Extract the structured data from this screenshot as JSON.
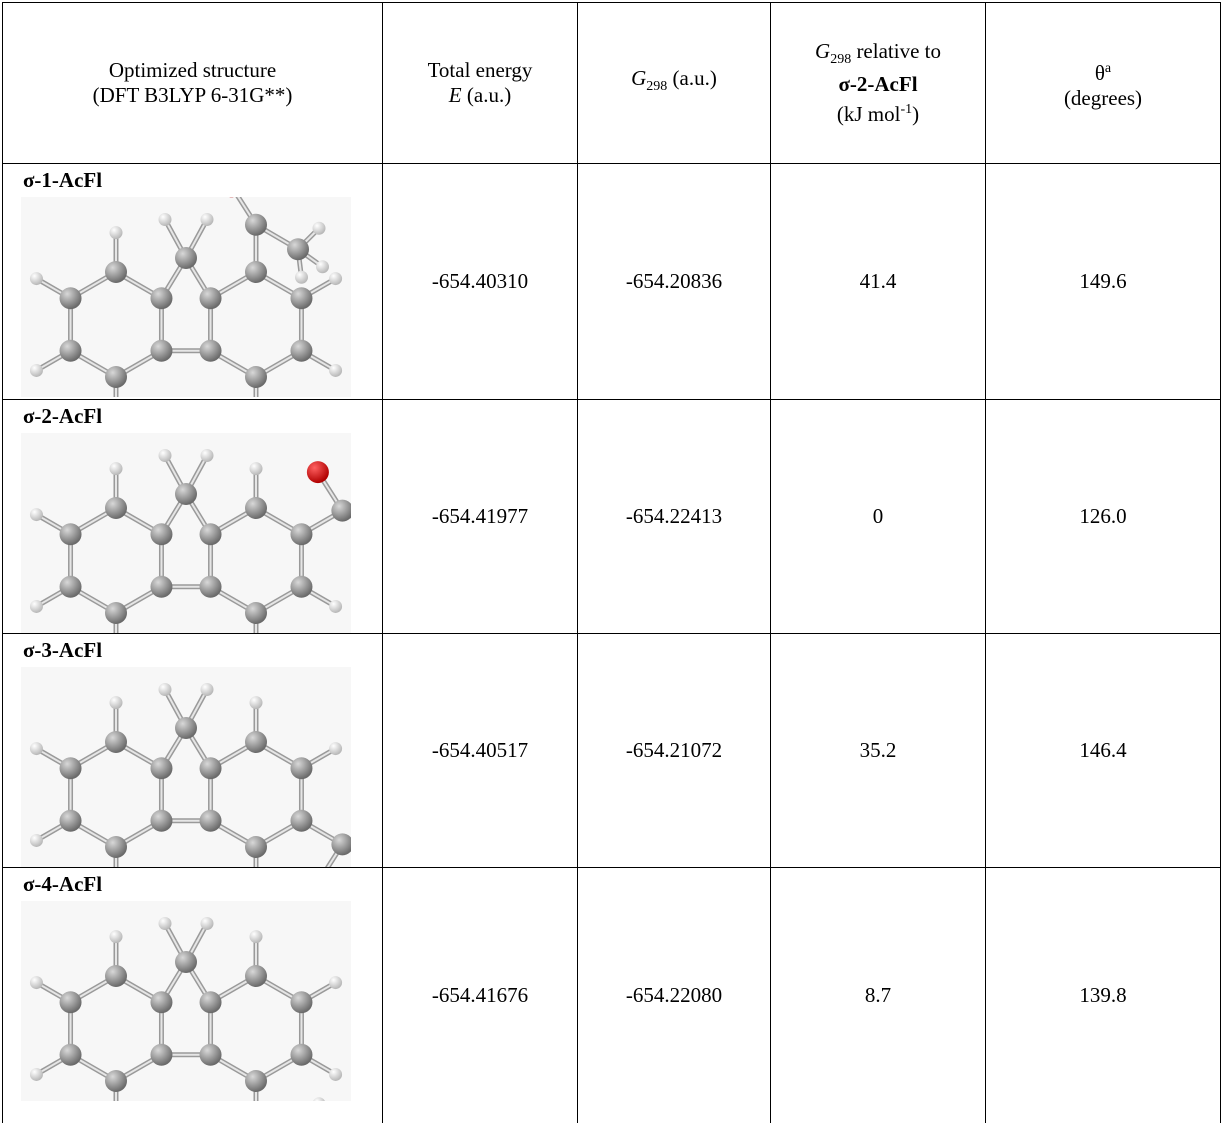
{
  "table": {
    "header": {
      "structure": {
        "line1": "Optimized structure",
        "line2": "(DFT B3LYP 6-31G**)"
      },
      "energy": {
        "line1": "Total energy",
        "symbol": "E",
        "unit": "(a.u.)"
      },
      "g298": {
        "symbol": "G",
        "subscript": "298",
        "unit": "(a.u.)"
      },
      "relative": {
        "symbol": "G",
        "subscript": "298",
        "text": "relative to",
        "reference": "σ-2-AcFl",
        "unit_open": "(kJ mol",
        "exponent": "-1",
        "unit_close": ")"
      },
      "theta": {
        "symbol": "θ",
        "footnote": "a",
        "unit": "(degrees)"
      }
    },
    "rows": [
      {
        "name": "σ-1-AcFl",
        "energy": "-654.40310",
        "g298": "-654.20836",
        "relative": "41.4",
        "theta": "149.6"
      },
      {
        "name": "σ-2-AcFl",
        "energy": "-654.41977",
        "g298": "-654.22413",
        "relative": "0",
        "theta": "126.0"
      },
      {
        "name": "σ-3-AcFl",
        "energy": "-654.40517",
        "g298": "-654.21072",
        "relative": "35.2",
        "theta": "146.4"
      },
      {
        "name": "σ-4-AcFl",
        "energy": "-654.41676",
        "g298": "-654.22080",
        "relative": "8.7",
        "theta": "139.8"
      }
    ]
  }
}
